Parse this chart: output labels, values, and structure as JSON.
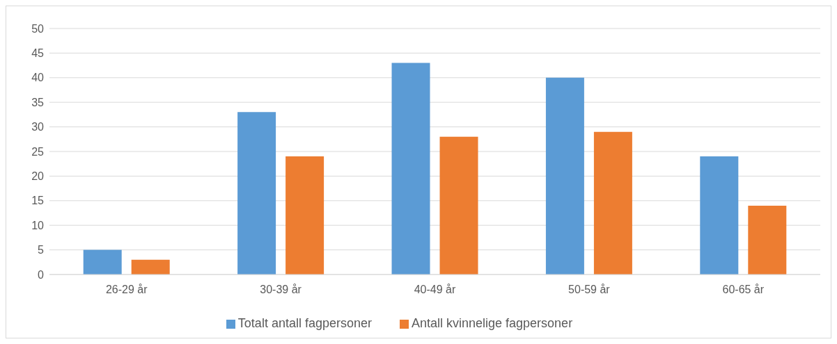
{
  "chart_data": {
    "type": "bar",
    "categories": [
      "26-29 år",
      "30-39 år",
      "40-49 år",
      "50-59 år",
      "60-65 år"
    ],
    "series": [
      {
        "name": "Totalt antall fagpersoner",
        "color": "#5b9bd5",
        "values": [
          5,
          33,
          43,
          40,
          24
        ]
      },
      {
        "name": "Antall kvinnelige fagpersoner",
        "color": "#ed7d31",
        "values": [
          3,
          24,
          28,
          29,
          14
        ]
      }
    ],
    "ylim": [
      0,
      50
    ],
    "yticks": [
      0,
      5,
      10,
      15,
      20,
      25,
      30,
      35,
      40,
      45,
      50
    ],
    "grid": "y",
    "legend": "bottom"
  }
}
